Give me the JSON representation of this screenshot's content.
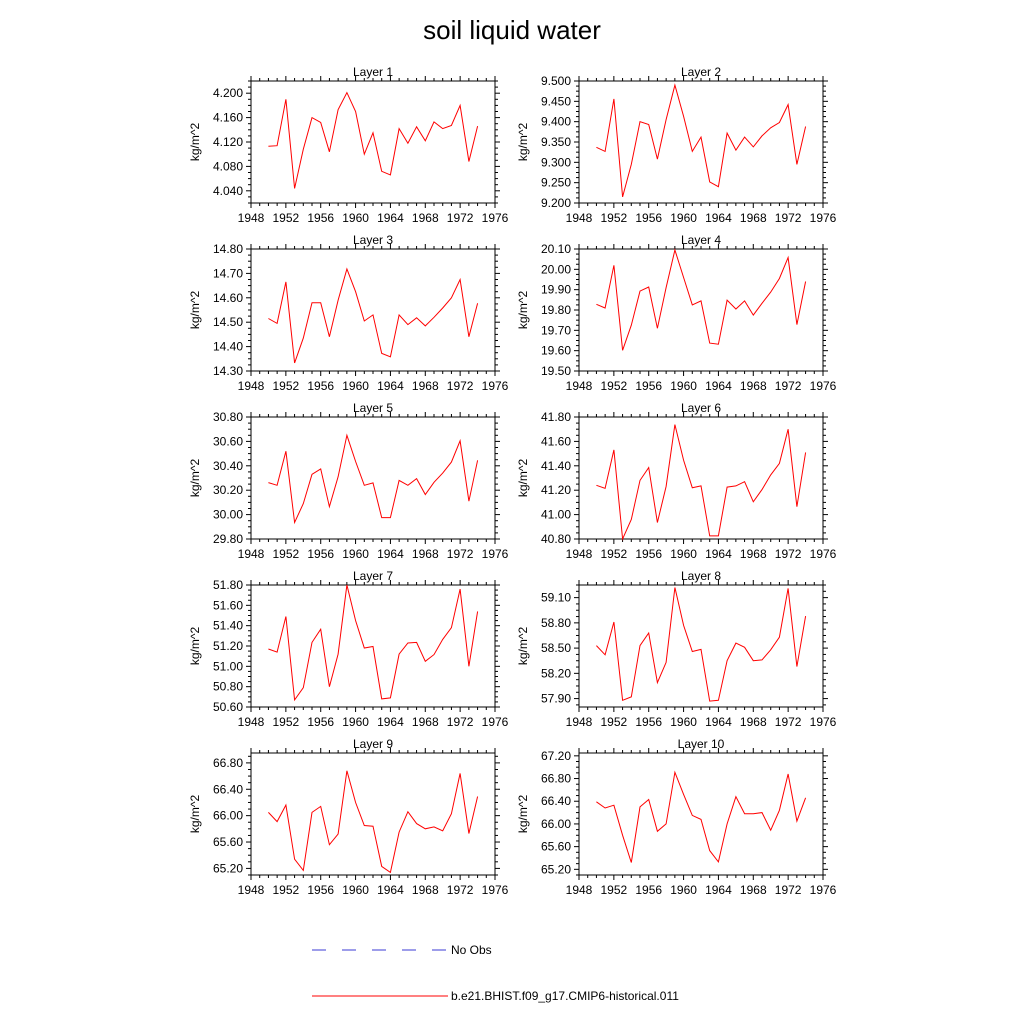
{
  "figure": {
    "title": "soil liquid water",
    "legend": [
      {
        "label": "No Obs",
        "color": "#3b3bd6",
        "style": "dashed"
      },
      {
        "label": "b.e21.BHIST.f09_g17.CMIP6-historical.011",
        "color": "#ff0000",
        "style": "solid"
      }
    ]
  },
  "chart_data": [
    {
      "type": "line",
      "title": "Layer 1",
      "ylabel": "kg/m^2",
      "xlim": [
        1948,
        1976
      ],
      "xticks": [
        1948,
        1952,
        1956,
        1960,
        1964,
        1968,
        1972,
        1976
      ],
      "ylim": [
        4.02,
        4.22
      ],
      "yticks": [
        4.04,
        4.08,
        4.12,
        4.16,
        4.2
      ],
      "ydigits": 3,
      "color": "#ff0000",
      "series": [
        {
          "x": [
            1950,
            1951,
            1952,
            1953,
            1954,
            1955,
            1956,
            1957,
            1958,
            1959,
            1960,
            1961,
            1962,
            1963,
            1964,
            1965,
            1966,
            1967,
            1968,
            1969,
            1970,
            1971,
            1972,
            1973,
            1974
          ],
          "y": [
            4.113,
            4.114,
            4.19,
            4.044,
            4.108,
            4.16,
            4.152,
            4.104,
            4.173,
            4.201,
            4.17,
            4.1,
            4.135,
            4.072,
            4.066,
            4.142,
            4.118,
            4.145,
            4.122,
            4.153,
            4.142,
            4.147,
            4.18,
            4.088,
            4.146
          ]
        }
      ]
    },
    {
      "type": "line",
      "title": "Layer 2",
      "ylabel": "kg/m^2",
      "xlim": [
        1948,
        1976
      ],
      "xticks": [
        1948,
        1952,
        1956,
        1960,
        1964,
        1968,
        1972,
        1976
      ],
      "ylim": [
        9.2,
        9.5
      ],
      "yticks": [
        9.2,
        9.25,
        9.3,
        9.35,
        9.4,
        9.45,
        9.5
      ],
      "ydigits": 3,
      "color": "#ff0000",
      "series": [
        {
          "x": [
            1950,
            1951,
            1952,
            1953,
            1954,
            1955,
            1956,
            1957,
            1958,
            1959,
            1960,
            1961,
            1962,
            1963,
            1964,
            1965,
            1966,
            1967,
            1968,
            1969,
            1970,
            1971,
            1972,
            1973,
            1974
          ],
          "y": [
            9.337,
            9.327,
            9.456,
            9.215,
            9.295,
            9.4,
            9.393,
            9.308,
            9.405,
            9.49,
            9.413,
            9.327,
            9.362,
            9.252,
            9.24,
            9.372,
            9.33,
            9.362,
            9.338,
            9.365,
            9.385,
            9.398,
            9.442,
            9.295,
            9.388
          ]
        }
      ]
    },
    {
      "type": "line",
      "title": "Layer 3",
      "ylabel": "kg/m^2",
      "xlim": [
        1948,
        1976
      ],
      "xticks": [
        1948,
        1952,
        1956,
        1960,
        1964,
        1968,
        1972,
        1976
      ],
      "ylim": [
        14.3,
        14.8
      ],
      "yticks": [
        14.3,
        14.4,
        14.5,
        14.6,
        14.7,
        14.8
      ],
      "ydigits": 2,
      "color": "#ff0000",
      "series": [
        {
          "x": [
            1950,
            1951,
            1952,
            1953,
            1954,
            1955,
            1956,
            1957,
            1958,
            1959,
            1960,
            1961,
            1962,
            1963,
            1964,
            1965,
            1966,
            1967,
            1968,
            1969,
            1970,
            1971,
            1972,
            1973,
            1974
          ],
          "y": [
            14.515,
            14.495,
            14.665,
            14.333,
            14.435,
            14.58,
            14.58,
            14.44,
            14.59,
            14.718,
            14.625,
            14.505,
            14.53,
            14.372,
            14.358,
            14.53,
            14.49,
            14.518,
            14.485,
            14.52,
            14.558,
            14.6,
            14.675,
            14.44,
            14.578
          ]
        }
      ]
    },
    {
      "type": "line",
      "title": "Layer 4",
      "ylabel": "kg/m^2",
      "xlim": [
        1948,
        1976
      ],
      "xticks": [
        1948,
        1952,
        1956,
        1960,
        1964,
        1968,
        1972,
        1976
      ],
      "ylim": [
        19.5,
        20.1
      ],
      "yticks": [
        19.5,
        19.6,
        19.7,
        19.8,
        19.9,
        20.0,
        20.1
      ],
      "ydigits": 2,
      "color": "#ff0000",
      "series": [
        {
          "x": [
            1950,
            1951,
            1952,
            1953,
            1954,
            1955,
            1956,
            1957,
            1958,
            1959,
            1960,
            1961,
            1962,
            1963,
            1964,
            1965,
            1966,
            1967,
            1968,
            1969,
            1970,
            1971,
            1972,
            1973,
            1974
          ],
          "y": [
            19.828,
            19.81,
            20.02,
            19.602,
            19.725,
            19.893,
            19.913,
            19.71,
            19.91,
            20.095,
            19.96,
            19.825,
            19.845,
            19.637,
            19.632,
            19.848,
            19.805,
            19.845,
            19.775,
            19.833,
            19.888,
            19.955,
            20.058,
            19.728,
            19.94
          ]
        }
      ]
    },
    {
      "type": "line",
      "title": "Layer 5",
      "ylabel": "kg/m^2",
      "xlim": [
        1948,
        1976
      ],
      "xticks": [
        1948,
        1952,
        1956,
        1960,
        1964,
        1968,
        1972,
        1976
      ],
      "ylim": [
        29.8,
        30.8
      ],
      "yticks": [
        29.8,
        30.0,
        30.2,
        30.4,
        30.6,
        30.8
      ],
      "ydigits": 2,
      "color": "#ff0000",
      "series": [
        {
          "x": [
            1950,
            1951,
            1952,
            1953,
            1954,
            1955,
            1956,
            1957,
            1958,
            1959,
            1960,
            1961,
            1962,
            1963,
            1964,
            1965,
            1966,
            1967,
            1968,
            1969,
            1970,
            1971,
            1972,
            1973,
            1974
          ],
          "y": [
            30.262,
            30.24,
            30.52,
            29.935,
            30.09,
            30.33,
            30.375,
            30.065,
            30.31,
            30.65,
            30.435,
            30.24,
            30.26,
            29.975,
            29.975,
            30.28,
            30.24,
            30.295,
            30.165,
            30.265,
            30.34,
            30.43,
            30.605,
            30.11,
            30.445
          ]
        }
      ]
    },
    {
      "type": "line",
      "title": "Layer 6",
      "ylabel": "kg/m^2",
      "xlim": [
        1948,
        1976
      ],
      "xticks": [
        1948,
        1952,
        1956,
        1960,
        1964,
        1968,
        1972,
        1976
      ],
      "ylim": [
        40.8,
        41.8
      ],
      "yticks": [
        40.8,
        41.0,
        41.2,
        41.4,
        41.6,
        41.8
      ],
      "ydigits": 2,
      "color": "#ff0000",
      "series": [
        {
          "x": [
            1950,
            1951,
            1952,
            1953,
            1954,
            1955,
            1956,
            1957,
            1958,
            1959,
            1960,
            1961,
            1962,
            1963,
            1964,
            1965,
            1966,
            1967,
            1968,
            1969,
            1970,
            1971,
            1972,
            1973,
            1974
          ],
          "y": [
            41.24,
            41.215,
            41.53,
            40.8,
            40.96,
            41.28,
            41.385,
            40.935,
            41.23,
            41.738,
            41.445,
            41.22,
            41.235,
            40.825,
            40.825,
            41.225,
            41.235,
            41.27,
            41.105,
            41.205,
            41.325,
            41.42,
            41.7,
            41.065,
            41.51
          ]
        }
      ]
    },
    {
      "type": "line",
      "title": "Layer 7",
      "ylabel": "kg/m^2",
      "xlim": [
        1948,
        1976
      ],
      "xticks": [
        1948,
        1952,
        1956,
        1960,
        1964,
        1968,
        1972,
        1976
      ],
      "ylim": [
        50.6,
        51.8
      ],
      "yticks": [
        50.6,
        50.8,
        51.0,
        51.2,
        51.4,
        51.6,
        51.8
      ],
      "ydigits": 2,
      "color": "#ff0000",
      "series": [
        {
          "x": [
            1950,
            1951,
            1952,
            1953,
            1954,
            1955,
            1956,
            1957,
            1958,
            1959,
            1960,
            1961,
            1962,
            1963,
            1964,
            1965,
            1966,
            1967,
            1968,
            1969,
            1970,
            1971,
            1972,
            1973,
            1974
          ],
          "y": [
            51.17,
            51.14,
            51.49,
            50.67,
            50.79,
            51.235,
            51.365,
            50.8,
            51.12,
            51.8,
            51.45,
            51.18,
            51.195,
            50.68,
            50.69,
            51.12,
            51.23,
            51.235,
            51.05,
            51.115,
            51.265,
            51.38,
            51.76,
            51.0,
            51.54
          ]
        }
      ]
    },
    {
      "type": "line",
      "title": "Layer 8",
      "ylabel": "kg/m^2",
      "xlim": [
        1948,
        1976
      ],
      "xticks": [
        1948,
        1952,
        1956,
        1960,
        1964,
        1968,
        1972,
        1976
      ],
      "ylim": [
        57.8,
        59.25
      ],
      "yticks": [
        57.9,
        58.2,
        58.5,
        58.8,
        59.1
      ],
      "ydigits": 2,
      "color": "#ff0000",
      "series": [
        {
          "x": [
            1950,
            1951,
            1952,
            1953,
            1954,
            1955,
            1956,
            1957,
            1958,
            1959,
            1960,
            1961,
            1962,
            1963,
            1964,
            1965,
            1966,
            1967,
            1968,
            1969,
            1970,
            1971,
            1972,
            1973,
            1974
          ],
          "y": [
            58.53,
            58.42,
            58.81,
            57.88,
            57.92,
            58.53,
            58.68,
            58.09,
            58.33,
            59.22,
            58.77,
            58.46,
            58.485,
            57.87,
            57.88,
            58.35,
            58.56,
            58.51,
            58.35,
            58.36,
            58.48,
            58.63,
            59.21,
            58.28,
            58.88
          ]
        }
      ]
    },
    {
      "type": "line",
      "title": "Layer 9",
      "ylabel": "kg/m^2",
      "xlim": [
        1948,
        1976
      ],
      "xticks": [
        1948,
        1952,
        1956,
        1960,
        1964,
        1968,
        1972,
        1976
      ],
      "ylim": [
        65.1,
        66.95
      ],
      "yticks": [
        65.2,
        65.6,
        66.0,
        66.4,
        66.8
      ],
      "ydigits": 2,
      "color": "#ff0000",
      "series": [
        {
          "x": [
            1950,
            1951,
            1952,
            1953,
            1954,
            1955,
            1956,
            1957,
            1958,
            1959,
            1960,
            1961,
            1962,
            1963,
            1964,
            1965,
            1966,
            1967,
            1968,
            1969,
            1970,
            1971,
            1972,
            1973,
            1974
          ],
          "y": [
            66.05,
            65.91,
            66.16,
            65.34,
            65.17,
            66.05,
            66.14,
            65.56,
            65.72,
            66.68,
            66.2,
            65.85,
            65.84,
            65.23,
            65.14,
            65.75,
            66.06,
            65.88,
            65.8,
            65.83,
            65.77,
            66.03,
            66.64,
            65.73,
            66.29
          ]
        }
      ]
    },
    {
      "type": "line",
      "title": "Layer 10",
      "ylabel": "kg/m^2",
      "xlim": [
        1948,
        1976
      ],
      "xticks": [
        1948,
        1952,
        1956,
        1960,
        1964,
        1968,
        1972,
        1976
      ],
      "ylim": [
        65.1,
        67.25
      ],
      "yticks": [
        65.2,
        65.6,
        66.0,
        66.4,
        66.8,
        67.2
      ],
      "ydigits": 2,
      "color": "#ff0000",
      "series": [
        {
          "x": [
            1950,
            1951,
            1952,
            1953,
            1954,
            1955,
            1956,
            1957,
            1958,
            1959,
            1960,
            1961,
            1962,
            1963,
            1964,
            1965,
            1966,
            1967,
            1968,
            1969,
            1970,
            1971,
            1972,
            1973,
            1974
          ],
          "y": [
            66.39,
            66.28,
            66.33,
            65.8,
            65.32,
            66.3,
            66.43,
            65.87,
            66.0,
            66.91,
            66.52,
            66.15,
            66.08,
            65.53,
            65.33,
            66.0,
            66.48,
            66.18,
            66.18,
            66.2,
            65.89,
            66.24,
            66.88,
            66.05,
            66.46
          ]
        }
      ]
    }
  ]
}
